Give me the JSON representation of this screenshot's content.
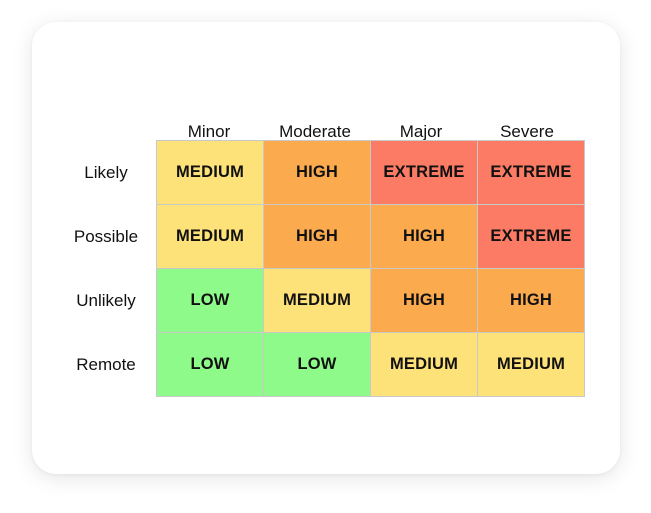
{
  "matrix": {
    "columns": [
      "Minor",
      "Moderate",
      "Major",
      "Severe"
    ],
    "rows": [
      "Likely",
      "Possible",
      "Unlikely",
      "Remote"
    ],
    "cells": [
      [
        "MEDIUM",
        "HIGH",
        "EXTREME",
        "EXTREME"
      ],
      [
        "MEDIUM",
        "HIGH",
        "HIGH",
        "EXTREME"
      ],
      [
        "LOW",
        "MEDIUM",
        "HIGH",
        "HIGH"
      ],
      [
        "LOW",
        "LOW",
        "MEDIUM",
        "MEDIUM"
      ]
    ],
    "level_colors": {
      "LOW": "#8efa8a",
      "MEDIUM": "#fde27a",
      "HIGH": "#fcaa4e",
      "EXTREME": "#fb7b64"
    }
  }
}
